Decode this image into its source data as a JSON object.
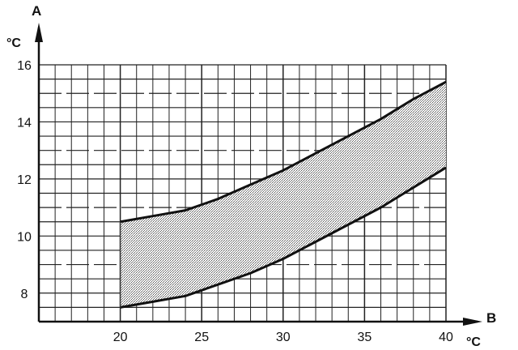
{
  "chart_data": {
    "type": "area",
    "title": "",
    "y_axis": {
      "letter": "A",
      "unit": "°C",
      "range": [
        7,
        16
      ],
      "ticks": [
        "8",
        "10",
        "12",
        "14",
        "16"
      ]
    },
    "x_axis": {
      "letter": "B",
      "unit": "°C",
      "range": [
        15,
        40
      ],
      "ticks": [
        "20",
        "25",
        "30",
        "35",
        "40"
      ]
    },
    "grid": true,
    "band": {
      "upper": {
        "x": [
          20,
          22,
          24,
          26,
          28,
          30,
          32,
          34,
          36,
          38,
          40
        ],
        "y": [
          10.5,
          10.7,
          10.9,
          11.3,
          11.8,
          12.3,
          12.9,
          13.5,
          14.1,
          14.8,
          15.4
        ]
      },
      "lower": {
        "x": [
          20,
          22,
          24,
          26,
          28,
          30,
          32,
          34,
          36,
          38,
          40
        ],
        "y": [
          7.5,
          7.7,
          7.9,
          8.3,
          8.7,
          9.2,
          9.8,
          10.4,
          11.0,
          11.7,
          12.4
        ]
      },
      "fill_color": "#b5b5b5",
      "line_color": "#111111"
    }
  }
}
